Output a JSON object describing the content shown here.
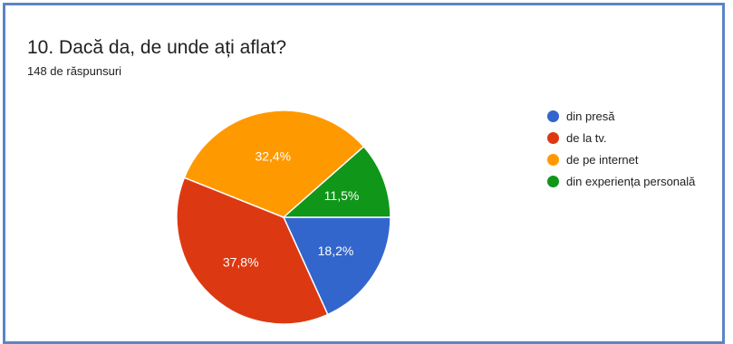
{
  "question": {
    "title": "10. Dacă da, de unde ați aflat?",
    "responses": "148 de răspunsuri"
  },
  "chart_data": {
    "type": "pie",
    "title": "10. Dacă da, de unde ați aflat?",
    "legend_position": "right",
    "slices": [
      {
        "label": "din presă",
        "value": 18.2,
        "display": "18,2%",
        "color": "#3366cc"
      },
      {
        "label": "de la tv.",
        "value": 37.8,
        "display": "37,8%",
        "color": "#dc3912"
      },
      {
        "label": "de pe internet",
        "value": 32.4,
        "display": "32,4%",
        "color": "#ff9900"
      },
      {
        "label": "din experiența personală",
        "value": 11.5,
        "display": "11,5%",
        "color": "#109618"
      }
    ]
  }
}
